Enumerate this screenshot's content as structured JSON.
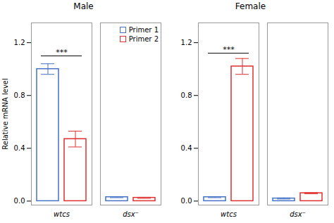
{
  "chart_data": [
    {
      "type": "bar",
      "title": "Male",
      "categories": [
        "wtcs",
        "dsx⁻"
      ],
      "series": [
        {
          "name": "Primer 1",
          "color": "#4472c4",
          "values": [
            1.0,
            0.03
          ],
          "errors": [
            0.04,
            0.004
          ]
        },
        {
          "name": "Primer 2",
          "color": "#e03030",
          "values": [
            0.47,
            0.025
          ],
          "errors": [
            0.06,
            0.004
          ]
        }
      ],
      "ylabel": "Relative mRNA level",
      "ylim": [
        -0.03,
        1.35
      ],
      "yticks": [
        {
          "value": 0,
          "label": "0.0"
        },
        0.4,
        0.8,
        1.2
      ],
      "legend": "upper right",
      "annotations": [
        {
          "text": "***",
          "category": "wtcs"
        }
      ]
    },
    {
      "type": "bar",
      "title": "Female",
      "categories": [
        "wtcs",
        "dsx⁻"
      ],
      "series": [
        {
          "name": "Primer 1",
          "color": "#4472c4",
          "values": [
            0.03,
            0.02
          ],
          "errors": [
            0.004,
            0.004
          ]
        },
        {
          "name": "Primer 2",
          "color": "#e03030",
          "values": [
            1.02,
            0.06
          ],
          "errors": [
            0.06,
            0.004
          ]
        }
      ],
      "ylim": [
        -0.03,
        1.35
      ],
      "yticks": [
        {
          "value": 0,
          "label": "0.0"
        },
        0.4,
        0.8,
        1.2
      ],
      "annotations": [
        {
          "text": "***",
          "category": "wtcs"
        }
      ]
    }
  ]
}
